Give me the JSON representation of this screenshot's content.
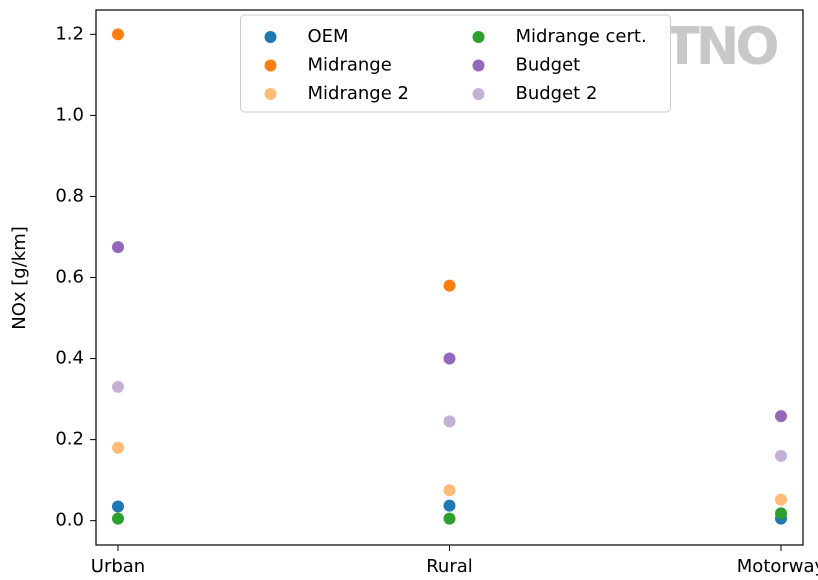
{
  "chart_data": {
    "type": "scatter",
    "ylabel": "NOx [g/km]",
    "watermark": "TNO",
    "categories": [
      "Urban",
      "Rural",
      "Motorway"
    ],
    "series": [
      {
        "name": "OEM",
        "color": "#1f77b4",
        "values": [
          0.035,
          0.037,
          0.005
        ]
      },
      {
        "name": "Midrange",
        "color": "#ff7f0e",
        "values": [
          1.2,
          0.58,
          null
        ]
      },
      {
        "name": "Midrange 2",
        "color": "#ffbb78",
        "values": [
          0.18,
          0.075,
          0.052
        ]
      },
      {
        "name": "Midrange cert.",
        "color": "#2ca02c",
        "values": [
          0.005,
          0.005,
          0.018
        ]
      },
      {
        "name": "Budget",
        "color": "#9467bd",
        "values": [
          0.675,
          0.4,
          0.258
        ]
      },
      {
        "name": "Budget 2",
        "color": "#c5b0d5",
        "values": [
          0.33,
          0.245,
          0.16
        ]
      }
    ],
    "ylim": [
      -0.06,
      1.26
    ],
    "yticks": [
      {
        "value": 0,
        "label": "0.0"
      },
      0.2,
      0.4,
      0.6,
      0.8,
      {
        "value": 1,
        "label": "1.0"
      },
      1.2
    ],
    "legend": "upper center",
    "grid": false
  }
}
